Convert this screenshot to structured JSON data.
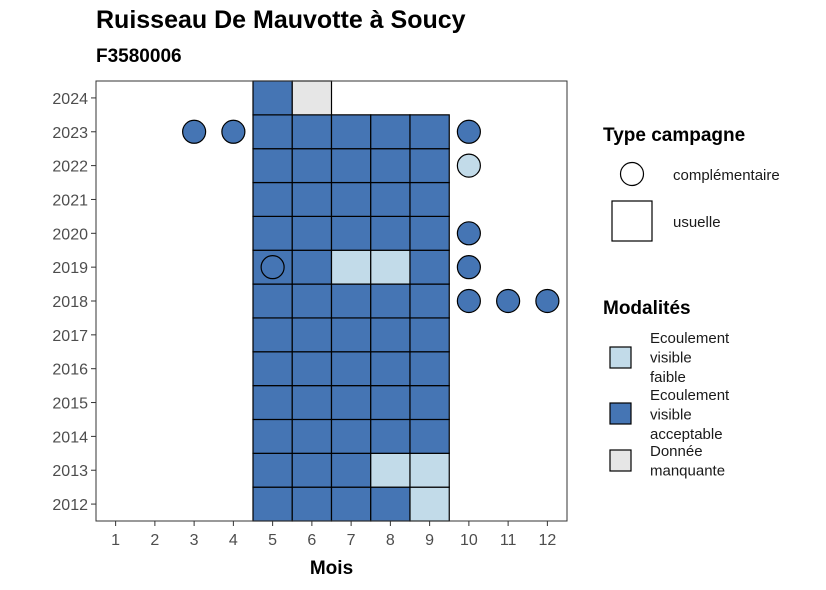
{
  "chart_data": {
    "type": "heatmap",
    "title": "Ruisseau De Mauvotte à Soucy",
    "subtitle": "F3580006",
    "xlabel": "Mois",
    "ylabel": "",
    "x_ticks": [
      "1",
      "2",
      "3",
      "4",
      "5",
      "6",
      "7",
      "8",
      "9",
      "10",
      "11",
      "12"
    ],
    "y_ticks": [
      "2012",
      "2013",
      "2014",
      "2015",
      "2016",
      "2017",
      "2018",
      "2019",
      "2020",
      "2021",
      "2022",
      "2023",
      "2024"
    ],
    "xlim": [
      0.5,
      12.5
    ],
    "ylim": [
      2011.5,
      2024.5
    ],
    "colors": {
      "Ecoulement visible faible": "#c2dbe9",
      "Ecoulement visible acceptable": "#4575b4",
      "Donnée manquante": "#e6e6e6"
    },
    "cells": [
      {
        "year": 2012,
        "month": 5,
        "value": "Ecoulement visible acceptable"
      },
      {
        "year": 2012,
        "month": 6,
        "value": "Ecoulement visible acceptable"
      },
      {
        "year": 2012,
        "month": 7,
        "value": "Ecoulement visible acceptable"
      },
      {
        "year": 2012,
        "month": 8,
        "value": "Ecoulement visible acceptable"
      },
      {
        "year": 2012,
        "month": 9,
        "value": "Ecoulement visible faible"
      },
      {
        "year": 2013,
        "month": 5,
        "value": "Ecoulement visible acceptable"
      },
      {
        "year": 2013,
        "month": 6,
        "value": "Ecoulement visible acceptable"
      },
      {
        "year": 2013,
        "month": 7,
        "value": "Ecoulement visible acceptable"
      },
      {
        "year": 2013,
        "month": 8,
        "value": "Ecoulement visible faible"
      },
      {
        "year": 2013,
        "month": 9,
        "value": "Ecoulement visible faible"
      },
      {
        "year": 2014,
        "month": 5,
        "value": "Ecoulement visible acceptable"
      },
      {
        "year": 2014,
        "month": 6,
        "value": "Ecoulement visible acceptable"
      },
      {
        "year": 2014,
        "month": 7,
        "value": "Ecoulement visible acceptable"
      },
      {
        "year": 2014,
        "month": 8,
        "value": "Ecoulement visible acceptable"
      },
      {
        "year": 2014,
        "month": 9,
        "value": "Ecoulement visible acceptable"
      },
      {
        "year": 2015,
        "month": 5,
        "value": "Ecoulement visible acceptable"
      },
      {
        "year": 2015,
        "month": 6,
        "value": "Ecoulement visible acceptable"
      },
      {
        "year": 2015,
        "month": 7,
        "value": "Ecoulement visible acceptable"
      },
      {
        "year": 2015,
        "month": 8,
        "value": "Ecoulement visible acceptable"
      },
      {
        "year": 2015,
        "month": 9,
        "value": "Ecoulement visible acceptable"
      },
      {
        "year": 2016,
        "month": 5,
        "value": "Ecoulement visible acceptable"
      },
      {
        "year": 2016,
        "month": 6,
        "value": "Ecoulement visible acceptable"
      },
      {
        "year": 2016,
        "month": 7,
        "value": "Ecoulement visible acceptable"
      },
      {
        "year": 2016,
        "month": 8,
        "value": "Ecoulement visible acceptable"
      },
      {
        "year": 2016,
        "month": 9,
        "value": "Ecoulement visible acceptable"
      },
      {
        "year": 2017,
        "month": 5,
        "value": "Ecoulement visible acceptable"
      },
      {
        "year": 2017,
        "month": 6,
        "value": "Ecoulement visible acceptable"
      },
      {
        "year": 2017,
        "month": 7,
        "value": "Ecoulement visible acceptable"
      },
      {
        "year": 2017,
        "month": 8,
        "value": "Ecoulement visible acceptable"
      },
      {
        "year": 2017,
        "month": 9,
        "value": "Ecoulement visible acceptable"
      },
      {
        "year": 2018,
        "month": 5,
        "value": "Ecoulement visible acceptable"
      },
      {
        "year": 2018,
        "month": 6,
        "value": "Ecoulement visible acceptable"
      },
      {
        "year": 2018,
        "month": 7,
        "value": "Ecoulement visible acceptable"
      },
      {
        "year": 2018,
        "month": 8,
        "value": "Ecoulement visible acceptable"
      },
      {
        "year": 2018,
        "month": 9,
        "value": "Ecoulement visible acceptable"
      },
      {
        "year": 2019,
        "month": 5,
        "value": "Ecoulement visible acceptable"
      },
      {
        "year": 2019,
        "month": 6,
        "value": "Ecoulement visible acceptable"
      },
      {
        "year": 2019,
        "month": 7,
        "value": "Ecoulement visible faible"
      },
      {
        "year": 2019,
        "month": 8,
        "value": "Ecoulement visible faible"
      },
      {
        "year": 2019,
        "month": 9,
        "value": "Ecoulement visible acceptable"
      },
      {
        "year": 2020,
        "month": 5,
        "value": "Ecoulement visible acceptable"
      },
      {
        "year": 2020,
        "month": 6,
        "value": "Ecoulement visible acceptable"
      },
      {
        "year": 2020,
        "month": 7,
        "value": "Ecoulement visible acceptable"
      },
      {
        "year": 2020,
        "month": 8,
        "value": "Ecoulement visible acceptable"
      },
      {
        "year": 2020,
        "month": 9,
        "value": "Ecoulement visible acceptable"
      },
      {
        "year": 2021,
        "month": 5,
        "value": "Ecoulement visible acceptable"
      },
      {
        "year": 2021,
        "month": 6,
        "value": "Ecoulement visible acceptable"
      },
      {
        "year": 2021,
        "month": 7,
        "value": "Ecoulement visible acceptable"
      },
      {
        "year": 2021,
        "month": 8,
        "value": "Ecoulement visible acceptable"
      },
      {
        "year": 2021,
        "month": 9,
        "value": "Ecoulement visible acceptable"
      },
      {
        "year": 2022,
        "month": 5,
        "value": "Ecoulement visible acceptable"
      },
      {
        "year": 2022,
        "month": 6,
        "value": "Ecoulement visible acceptable"
      },
      {
        "year": 2022,
        "month": 7,
        "value": "Ecoulement visible acceptable"
      },
      {
        "year": 2022,
        "month": 8,
        "value": "Ecoulement visible acceptable"
      },
      {
        "year": 2022,
        "month": 9,
        "value": "Ecoulement visible acceptable"
      },
      {
        "year": 2023,
        "month": 5,
        "value": "Ecoulement visible acceptable"
      },
      {
        "year": 2023,
        "month": 6,
        "value": "Ecoulement visible acceptable"
      },
      {
        "year": 2023,
        "month": 7,
        "value": "Ecoulement visible acceptable"
      },
      {
        "year": 2023,
        "month": 8,
        "value": "Ecoulement visible acceptable"
      },
      {
        "year": 2023,
        "month": 9,
        "value": "Ecoulement visible acceptable"
      },
      {
        "year": 2024,
        "month": 5,
        "value": "Ecoulement visible acceptable"
      },
      {
        "year": 2024,
        "month": 6,
        "value": "Donnée manquante"
      }
    ],
    "points": [
      {
        "year": 2023,
        "month": 3,
        "value": "Ecoulement visible acceptable"
      },
      {
        "year": 2023,
        "month": 4,
        "value": "Ecoulement visible acceptable"
      },
      {
        "year": 2023,
        "month": 10,
        "value": "Ecoulement visible acceptable"
      },
      {
        "year": 2022,
        "month": 10,
        "value": "Ecoulement visible faible"
      },
      {
        "year": 2020,
        "month": 10,
        "value": "Ecoulement visible acceptable"
      },
      {
        "year": 2019,
        "month": 5,
        "value": "Ecoulement visible acceptable"
      },
      {
        "year": 2019,
        "month": 10,
        "value": "Ecoulement visible acceptable"
      },
      {
        "year": 2018,
        "month": 10,
        "value": "Ecoulement visible acceptable"
      },
      {
        "year": 2018,
        "month": 11,
        "value": "Ecoulement visible acceptable"
      },
      {
        "year": 2018,
        "month": 12,
        "value": "Ecoulement visible acceptable"
      }
    ],
    "legend_placement": "right",
    "legend_type": {
      "title": "Type campagne",
      "items": [
        {
          "label": "complémentaire",
          "shape": "circle"
        },
        {
          "label": "usuelle",
          "shape": "square"
        }
      ]
    },
    "legend_modalites": {
      "title": "Modalités",
      "items": [
        {
          "lines": [
            "Ecoulement",
            "visible",
            "faible"
          ],
          "color": "#c2dbe9"
        },
        {
          "lines": [
            "Ecoulement",
            "visible",
            "acceptable"
          ],
          "color": "#4575b4"
        },
        {
          "lines": [
            "Donnée",
            "manquante"
          ],
          "color": "#e6e6e6"
        }
      ]
    }
  }
}
